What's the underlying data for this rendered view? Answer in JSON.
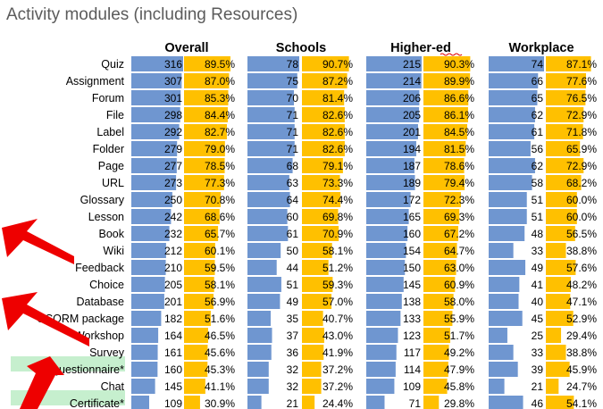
{
  "title": "Activity modules (including Resources)",
  "chart_data": {
    "type": "bar",
    "categories": [
      "Quiz",
      "Assignment",
      "Forum",
      "File",
      "Label",
      "Folder",
      "Page",
      "URL",
      "Glossary",
      "Lesson",
      "Book",
      "Wiki",
      "Feedback",
      "Choice",
      "Database",
      "SCORM package",
      "Workshop",
      "Survey",
      "Questionnaire*",
      "Chat",
      "Certificate*"
    ],
    "panels": [
      {
        "name": "Overall",
        "counts": [
          316,
          307,
          301,
          298,
          292,
          279,
          277,
          273,
          250,
          242,
          232,
          212,
          210,
          205,
          201,
          182,
          164,
          161,
          160,
          145,
          109
        ],
        "percents": [
          "89.5%",
          "87.0%",
          "85.3%",
          "84.4%",
          "82.7%",
          "79.0%",
          "78.5%",
          "77.3%",
          "70.8%",
          "68.6%",
          "65.7%",
          "60.1%",
          "59.5%",
          "58.1%",
          "56.9%",
          "51.6%",
          "46.5%",
          "45.6%",
          "45.3%",
          "41.1%",
          "30.9%"
        ]
      },
      {
        "name": "Schools",
        "counts": [
          78,
          75,
          70,
          71,
          71,
          71,
          68,
          63,
          64,
          60,
          61,
          50,
          44,
          51,
          49,
          35,
          37,
          36,
          32,
          32,
          21
        ],
        "percents": [
          "90.7%",
          "87.2%",
          "81.4%",
          "82.6%",
          "82.6%",
          "82.6%",
          "79.1%",
          "73.3%",
          "74.4%",
          "69.8%",
          "70.9%",
          "58.1%",
          "51.2%",
          "59.3%",
          "57.0%",
          "40.7%",
          "43.0%",
          "41.9%",
          "37.2%",
          "37.2%",
          "24.4%"
        ]
      },
      {
        "name": "Higher-ed",
        "counts": [
          215,
          214,
          206,
          205,
          201,
          194,
          187,
          189,
          172,
          165,
          160,
          154,
          150,
          145,
          138,
          133,
          123,
          117,
          114,
          109,
          71
        ],
        "percents": [
          "90.3%",
          "89.9%",
          "86.6%",
          "86.1%",
          "84.5%",
          "81.5%",
          "78.6%",
          "79.4%",
          "72.3%",
          "69.3%",
          "67.2%",
          "64.7%",
          "63.0%",
          "60.9%",
          "58.0%",
          "55.9%",
          "51.7%",
          "49.2%",
          "47.9%",
          "45.8%",
          "29.8%"
        ]
      },
      {
        "name": "Workplace",
        "counts": [
          74,
          66,
          65,
          62,
          61,
          56,
          62,
          58,
          51,
          51,
          48,
          33,
          49,
          41,
          40,
          45,
          25,
          33,
          39,
          21,
          46
        ],
        "percents": [
          "87.1%",
          "77.6%",
          "76.5%",
          "72.9%",
          "71.8%",
          "65.9%",
          "72.9%",
          "68.2%",
          "60.0%",
          "60.0%",
          "56.5%",
          "38.8%",
          "57.6%",
          "48.2%",
          "47.1%",
          "52.9%",
          "29.4%",
          "38.8%",
          "45.9%",
          "24.7%",
          "54.1%"
        ]
      }
    ],
    "highlighted_categories": [
      "Questionnaire*",
      "Certificate*"
    ],
    "arrowed_categories": [
      "Feedback",
      "Survey",
      "Questionnaire*"
    ],
    "colors": {
      "count_bar": "#6f96d0",
      "percent_bar": "#ffc000",
      "highlight": "#c6efce",
      "arrow": "#ee0000",
      "text": "#000000",
      "title": "#5b5b5b"
    }
  }
}
